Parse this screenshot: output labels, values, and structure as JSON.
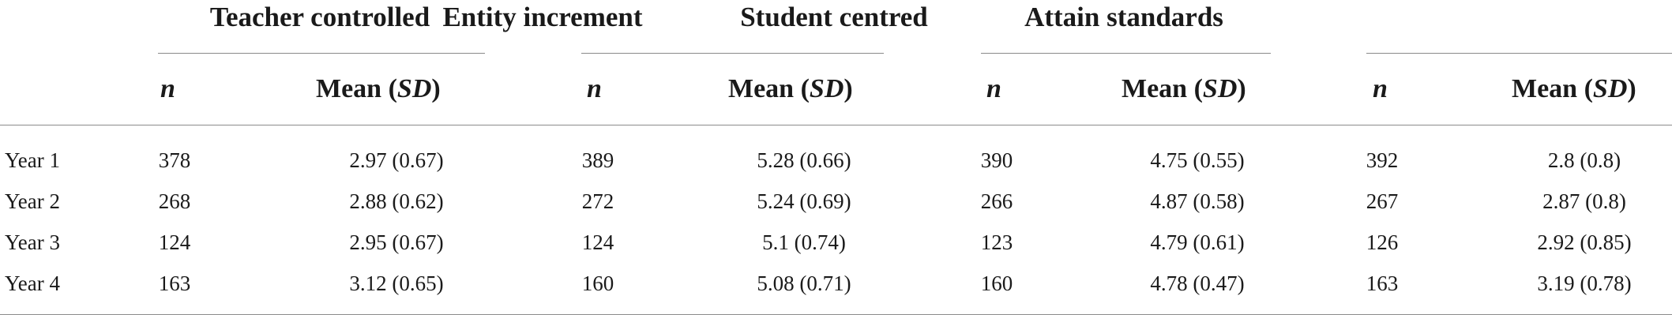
{
  "groups": [
    {
      "title": "Teacher controlled"
    },
    {
      "title": "Entity increment"
    },
    {
      "title": "Student centred"
    },
    {
      "title": "Attain standards"
    }
  ],
  "subheaders": {
    "n": "n",
    "mean_prefix": "Mean (",
    "sd": "SD",
    "mean_suffix": ")"
  },
  "rows": [
    {
      "label": "Year 1",
      "vals": [
        {
          "n": "378",
          "m": "2.97 (0.67)"
        },
        {
          "n": "389",
          "m": "5.28 (0.66)"
        },
        {
          "n": "390",
          "m": "4.75 (0.55)"
        },
        {
          "n": "392",
          "m": "2.8 (0.8)"
        }
      ]
    },
    {
      "label": "Year 2",
      "vals": [
        {
          "n": "268",
          "m": "2.88 (0.62)"
        },
        {
          "n": "272",
          "m": "5.24 (0.69)"
        },
        {
          "n": "266",
          "m": "4.87 (0.58)"
        },
        {
          "n": "267",
          "m": "2.87 (0.8)"
        }
      ]
    },
    {
      "label": "Year 3",
      "vals": [
        {
          "n": "124",
          "m": "2.95 (0.67)"
        },
        {
          "n": "124",
          "m": "5.1 (0.74)"
        },
        {
          "n": "123",
          "m": "4.79 (0.61)"
        },
        {
          "n": "126",
          "m": "2.92 (0.85)"
        }
      ]
    },
    {
      "label": "Year 4",
      "vals": [
        {
          "n": "163",
          "m": "3.12 (0.65)"
        },
        {
          "n": "160",
          "m": "5.08 (0.71)"
        },
        {
          "n": "160",
          "m": "4.78 (0.47)"
        },
        {
          "n": "163",
          "m": "3.19 (0.78)"
        }
      ]
    }
  ]
}
